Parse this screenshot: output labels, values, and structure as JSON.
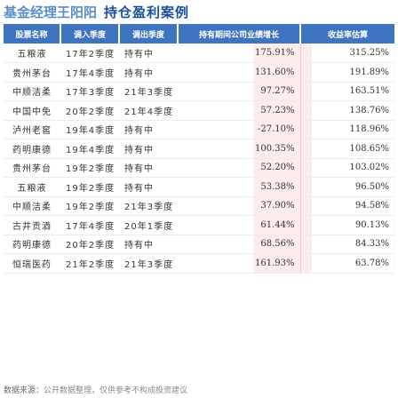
{
  "title": {
    "part1": "基金经理王阳阳",
    "part2": "持仓盈利案例"
  },
  "table": {
    "headers": [
      "股票名称",
      "调入季度",
      "调出季度",
      "持有期间公司业绩增长",
      "收益率估算"
    ],
    "rows": [
      {
        "name": "五粮液",
        "in": "17年2季度",
        "out": "持有中",
        "growth": "175.91%",
        "return": "315.25%"
      },
      {
        "name": "贵州茅台",
        "in": "17年4季度",
        "out": "持有中",
        "growth": "131.60%",
        "return": "191.89%"
      },
      {
        "name": "中顺洁柔",
        "in": "17年3季度",
        "out": "21年3季度",
        "growth": "97.27%",
        "return": "163.51%"
      },
      {
        "name": "中国中免",
        "in": "20年2季度",
        "out": "21年4季度",
        "growth": "57.23%",
        "return": "138.76%"
      },
      {
        "name": "泸州老窖",
        "in": "19年4季度",
        "out": "持有中",
        "growth": "-27.10%",
        "return": "118.96%"
      },
      {
        "name": "药明康德",
        "in": "19年4季度",
        "out": "持有中",
        "growth": "100.35%",
        "return": "108.65%"
      },
      {
        "name": "贵州茅台",
        "in": "19年2季度",
        "out": "持有中",
        "growth": "52.20%",
        "return": "103.02%"
      },
      {
        "name": "五粮液",
        "in": "19年2季度",
        "out": "持有中",
        "growth": "53.38%",
        "return": "96.50%"
      },
      {
        "name": "中顺洁柔",
        "in": "19年2季度",
        "out": "21年3季度",
        "growth": "37.90%",
        "return": "94.58%"
      },
      {
        "name": "古井贡酒",
        "in": "17年4季度",
        "out": "20年1季度",
        "growth": "61.44%",
        "return": "90.13%"
      },
      {
        "name": "药明康德",
        "in": "20年2季度",
        "out": "持有中",
        "growth": "68.56%",
        "return": "84.33%"
      },
      {
        "name": "恒瑞医药",
        "in": "21年2季度",
        "out": "21年3季度",
        "growth": "161.93%",
        "return": "63.78%"
      }
    ]
  },
  "footer": {
    "label": "数据来源：",
    "text": "公开数据整理，仅供参考不构成投资建议"
  }
}
